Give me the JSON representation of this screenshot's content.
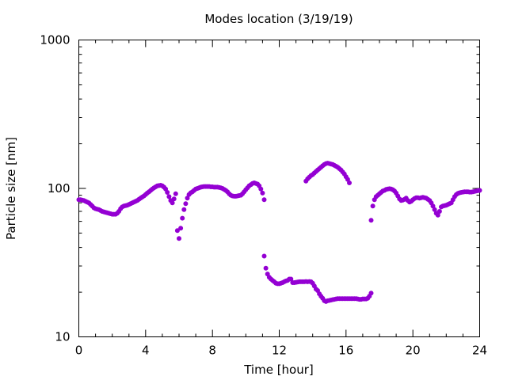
{
  "chart_data": {
    "type": "scatter",
    "title": "Modes location (3/19/19)",
    "xlabel": "Time [hour]",
    "ylabel": "Particle size [nm]",
    "xlim": [
      0,
      24
    ],
    "ylim": [
      10,
      1000
    ],
    "yscale": "log",
    "grid": false,
    "legend": "none",
    "marker_color": "#9400d3",
    "xticks": [
      0,
      4,
      8,
      12,
      16,
      20,
      24
    ],
    "xtick_labels": [
      "0",
      "4",
      "8",
      "12",
      "16",
      "20",
      "24"
    ],
    "yticks": [
      10,
      100,
      1000
    ],
    "ytick_labels": [
      "10",
      "100",
      "1000"
    ],
    "series": [
      {
        "name": "",
        "x": [
          0.0,
          0.1,
          0.2,
          0.3,
          0.4,
          0.5,
          0.6,
          0.7,
          0.8,
          0.9,
          1.0,
          1.1,
          1.2,
          1.3,
          1.4,
          1.5,
          1.6,
          1.7,
          1.8,
          1.9,
          2.0,
          2.1,
          2.2,
          2.3,
          2.4,
          2.5,
          2.6,
          2.7,
          2.8,
          2.9,
          3.0,
          3.1,
          3.2,
          3.3,
          3.4,
          3.5,
          3.6,
          3.7,
          3.8,
          3.9,
          4.0,
          4.1,
          4.2,
          4.3,
          4.4,
          4.5,
          4.6,
          4.7,
          4.8,
          4.9,
          5.0,
          5.1,
          5.2,
          5.3,
          5.4,
          5.5,
          5.6,
          5.7,
          5.8,
          5.9,
          6.0,
          6.1,
          6.2,
          6.3,
          6.4,
          6.5,
          6.6,
          6.7,
          6.8,
          6.9,
          7.0,
          7.1,
          7.2,
          7.3,
          7.4,
          7.5,
          7.6,
          7.7,
          7.8,
          7.9,
          8.0,
          8.1,
          8.2,
          8.3,
          8.4,
          8.5,
          8.6,
          8.7,
          8.8,
          8.9,
          9.0,
          9.1,
          9.2,
          9.3,
          9.4,
          9.5,
          9.6,
          9.7,
          9.8,
          9.9,
          10.0,
          10.1,
          10.2,
          10.3,
          10.4,
          10.5,
          10.6,
          10.7,
          10.8,
          10.9,
          11.0,
          11.1
        ],
        "y": [
          84,
          84,
          83.5,
          83,
          82,
          81,
          80,
          78,
          76,
          74,
          73,
          72.5,
          72,
          71,
          70,
          69.5,
          69,
          68.5,
          68,
          67.5,
          67,
          67,
          67,
          68,
          70,
          73,
          75,
          76,
          76.5,
          77,
          78,
          79,
          80,
          81,
          82,
          83,
          84.5,
          86,
          87.5,
          89,
          91,
          93,
          95,
          97,
          99,
          101,
          102.5,
          104,
          104.5,
          105,
          104,
          102,
          99,
          94,
          88,
          83,
          80,
          85,
          92,
          52,
          46,
          54,
          63,
          72,
          79,
          86,
          91,
          93.5,
          95,
          97,
          99,
          100,
          101,
          102,
          102.5,
          103,
          103,
          103,
          103,
          102.5,
          102.5,
          102,
          102,
          102,
          101.5,
          101,
          100,
          98.5,
          97,
          95,
          92,
          90,
          89,
          88.5,
          88.5,
          89,
          89.5,
          90,
          92,
          95,
          98,
          101,
          104,
          106,
          108,
          109,
          108,
          107,
          104,
          99,
          93,
          84
        ]
      },
      {
        "name": "",
        "x": [
          11.1,
          11.2,
          11.3,
          11.4,
          11.5,
          11.6,
          11.7,
          11.8,
          11.9,
          12.0,
          12.1,
          12.2,
          12.3,
          12.4,
          12.5,
          12.6,
          12.7,
          12.8,
          12.9,
          13.0,
          13.1,
          13.2,
          13.3,
          13.4,
          13.5,
          13.6,
          13.7,
          13.8,
          13.9,
          14.0,
          14.1,
          14.2,
          14.3,
          14.4,
          14.5,
          14.6,
          14.7,
          14.8,
          14.9,
          15.0,
          15.1,
          15.2,
          15.3,
          15.4,
          15.5,
          15.6,
          15.7,
          15.8,
          15.9,
          16.0,
          16.1,
          16.2,
          16.3,
          16.4,
          16.5,
          16.6,
          16.7,
          16.8,
          16.9,
          17.0,
          17.1,
          17.2,
          17.3,
          17.4,
          17.5
        ],
        "y": [
          35,
          29,
          26.5,
          25.2,
          24.5,
          24,
          23.5,
          23,
          22.8,
          22.8,
          23,
          23.2,
          23.5,
          23.8,
          24,
          24.5,
          24.5,
          23.2,
          23.2,
          23.3,
          23.4,
          23.5,
          23.5,
          23.5,
          23.5,
          23.6,
          23.5,
          23.6,
          23.5,
          23,
          22,
          21,
          20.5,
          19.5,
          18.8,
          18.2,
          17.5,
          17.3,
          17.5,
          17.6,
          17.7,
          17.8,
          17.9,
          18,
          18.1,
          18.1,
          18.1,
          18.1,
          18.1,
          18.1,
          18.1,
          18.1,
          18.1,
          18.1,
          18.1,
          18.1,
          18,
          17.9,
          17.9,
          18,
          18,
          18,
          18.2,
          18.8,
          19.7
        ]
      },
      {
        "name": "",
        "x": [
          13.6,
          13.7,
          13.8,
          13.9,
          14.0,
          14.1,
          14.2,
          14.3,
          14.4,
          14.5,
          14.6,
          14.7,
          14.8,
          14.9,
          15.0,
          15.1,
          15.2,
          15.3,
          15.4,
          15.5,
          15.6,
          15.7,
          15.8,
          15.9,
          16.0,
          16.1,
          16.2
        ],
        "y": [
          112,
          116,
          119,
          122,
          124,
          127,
          130,
          133,
          136,
          139,
          142,
          145,
          147,
          148,
          147,
          146,
          145,
          143,
          141,
          139,
          136,
          133,
          129,
          125,
          120,
          115,
          109
        ]
      },
      {
        "name": "",
        "x": [
          17.5,
          17.6,
          17.7,
          17.8,
          17.9,
          18.0,
          18.1,
          18.2,
          18.3,
          18.4,
          18.5,
          18.6,
          18.7,
          18.8,
          18.9,
          19.0,
          19.1,
          19.2,
          19.3,
          19.4,
          19.5,
          19.6,
          19.7,
          19.8,
          19.9,
          20.0,
          20.1,
          20.2,
          20.3,
          20.4,
          20.5,
          20.6,
          20.7,
          20.8,
          20.9,
          21.0,
          21.1,
          21.2,
          21.3,
          21.4,
          21.5,
          21.6,
          21.7,
          21.8,
          21.9,
          22.0,
          22.1,
          22.2,
          22.3,
          22.4,
          22.5,
          22.6,
          22.7,
          22.8,
          22.9,
          23.0,
          23.1,
          23.2,
          23.3,
          23.4,
          23.5,
          23.6,
          23.7,
          23.8,
          23.9,
          24.0
        ],
        "y": [
          61,
          76,
          84,
          88,
          90,
          92,
          94,
          96,
          97,
          98.5,
          99,
          99.5,
          99,
          98,
          96,
          93,
          89,
          85,
          83,
          83.5,
          84.5,
          86,
          83,
          81,
          82,
          84,
          85.5,
          86.5,
          86.5,
          86,
          86.5,
          87,
          86.5,
          86,
          84.5,
          83,
          80,
          76,
          72,
          68,
          66,
          70,
          75,
          76,
          76.5,
          77,
          78,
          79,
          80,
          84,
          88,
          91,
          92.5,
          93.5,
          94,
          94.5,
          95,
          95,
          95,
          94.5,
          94.5,
          95,
          95.5,
          96,
          96.5,
          97
        ]
      }
    ]
  }
}
